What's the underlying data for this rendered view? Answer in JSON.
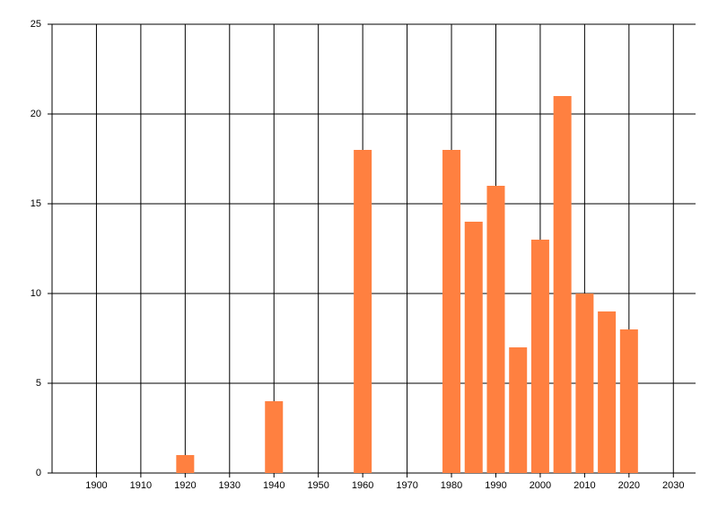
{
  "chart_data": {
    "type": "bar",
    "x": [
      1920,
      1940,
      1960,
      1980,
      1985,
      1990,
      1995,
      2000,
      2005,
      2010,
      2015,
      2020
    ],
    "values": [
      1,
      4,
      18,
      18,
      14,
      16,
      7,
      13,
      21,
      10,
      9,
      8
    ],
    "color": "#ff8040",
    "xlim": [
      1890,
      2035
    ],
    "xticks": [
      1900,
      1910,
      1920,
      1930,
      1940,
      1950,
      1960,
      1970,
      1980,
      1990,
      2000,
      2010,
      2020,
      2030
    ],
    "ylim": [
      0,
      25
    ],
    "yticks": [
      0,
      5,
      10,
      15,
      20,
      25
    ],
    "grid": true
  }
}
